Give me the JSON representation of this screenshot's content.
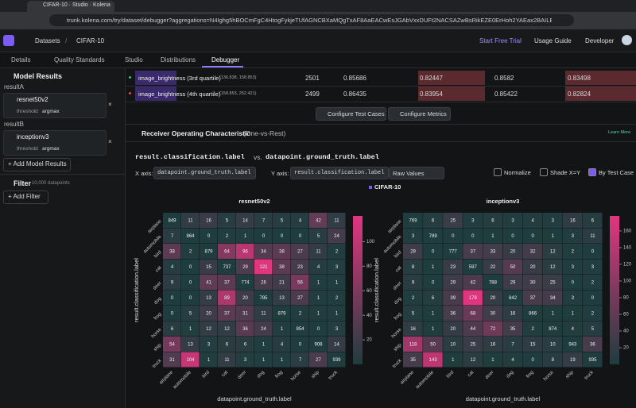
{
  "browser": {
    "tab_title": "CIFAR-10 · Studio · Kolena",
    "url": "trunk.kolena.com/try/dataset/debugger?aggregations=N4Ighg5hBOCmFgC4HtogFykjeTUfAGNCBXaMQgTxAF8AaEACwEsJGAbVxxDUFt2NACSAZwBsRikEZE0ErHoh2YAEax2BAILEyFagwAOYcgFsRvEDGQ"
  },
  "header": {
    "breadcrumb": [
      "Datasets",
      "CIFAR-10"
    ],
    "actions": [
      "Start Free Trial",
      "Usage Guide",
      "Developer"
    ]
  },
  "tabs": [
    "Details",
    "Quality Standards",
    "Studio",
    "Distributions",
    "Debugger"
  ],
  "sidebar": {
    "model_results_title": "Model Results",
    "models": [
      {
        "group": "resultA",
        "name": "resnet50v2",
        "param": "threshold",
        "param_value": "argmax"
      },
      {
        "group": "resultB",
        "name": "inceptionv3",
        "param": "threshold",
        "param_value": "argmax"
      }
    ],
    "add_model": "+ Add Model Results",
    "filter_title": "Filter",
    "filter_count": "10,000 datapoints",
    "add_filter": "+ Add Filter"
  },
  "table": {
    "rows": [
      [
        "image_brightness (3rd quartile)",
        "(136.838, 158.853)",
        "2501",
        "0.85686",
        "0.82447",
        "0.8582",
        "0.83498"
      ],
      [
        "image_brightness (4th quartile)",
        "(158.853, 252.421)",
        "2499",
        "0.86435",
        "0.83954",
        "0.85422",
        "0.82824"
      ]
    ]
  },
  "buttons": [
    "Configure Test Cases",
    "Configure Metrics"
  ],
  "section": {
    "title": "Receiver Operating Characteristic",
    "subtitle": "(One-vs-Rest)",
    "link": "Learn More"
  },
  "plot": {
    "title_parts": [
      "result.classification.label",
      "vs.",
      "datapoint.ground_truth.label"
    ],
    "x_axis_label": "X axis:",
    "x_axis_value": "datapoint.ground_truth.label",
    "y_axis_label": "Y axis:",
    "y_axis_value": "result.classification.label",
    "mode": "Raw Values",
    "options": [
      "Normalize",
      "Shade X=Y",
      "By Test Case"
    ],
    "legend": "CIFAR-10"
  },
  "heatmaps": {
    "categories": [
      "airplane",
      "automobile",
      "bird",
      "cat",
      "deer",
      "dog",
      "frog",
      "horse",
      "ship",
      "truck"
    ],
    "y_label": "result.classification.label",
    "x_label": "datapoint.ground_truth.label",
    "plots": [
      {
        "title": "resnet50v2",
        "colorbar_ticks": [
          100,
          80,
          60,
          40,
          20
        ],
        "matrix": [
          [
            849,
            11,
            16,
            5,
            14,
            7,
            5,
            4,
            42,
            11
          ],
          [
            7,
            864,
            0,
            2,
            1,
            0,
            0,
            0,
            5,
            24
          ],
          [
            38,
            2,
            879,
            64,
            96,
            34,
            38,
            27,
            11,
            2
          ],
          [
            4,
            0,
            15,
            737,
            29,
            121,
            38,
            23,
            4,
            3
          ],
          [
            9,
            0,
            41,
            37,
            774,
            26,
            21,
            56,
            1,
            1
          ],
          [
            0,
            0,
            13,
            89,
            20,
            785,
            13,
            27,
            1,
            2
          ],
          [
            0,
            5,
            20,
            37,
            31,
            11,
            879,
            2,
            1,
            1
          ],
          [
            6,
            1,
            12,
            12,
            36,
            24,
            1,
            854,
            0,
            3
          ],
          [
            54,
            13,
            3,
            6,
            6,
            1,
            4,
            0,
            908,
            14
          ],
          [
            31,
            104,
            1,
            11,
            3,
            1,
            1,
            7,
            27,
            939
          ]
        ]
      },
      {
        "title": "inceptionv3",
        "colorbar_ticks": [
          160,
          140,
          120,
          100,
          80,
          60,
          40,
          20
        ],
        "matrix": [
          [
            769,
            6,
            25,
            3,
            6,
            3,
            4,
            3,
            16,
            6
          ],
          [
            3,
            789,
            0,
            0,
            1,
            0,
            0,
            1,
            3,
            11
          ],
          [
            29,
            0,
            777,
            37,
            33,
            20,
            32,
            12,
            2,
            0
          ],
          [
            8,
            1,
            23,
            597,
            22,
            50,
            20,
            12,
            3,
            3
          ],
          [
            9,
            0,
            29,
            42,
            788,
            29,
            30,
            25,
            0,
            2
          ],
          [
            2,
            6,
            39,
            178,
            20,
            842,
            37,
            34,
            3,
            0
          ],
          [
            5,
            1,
            36,
            68,
            30,
            16,
            866,
            1,
            1,
            2
          ],
          [
            16,
            1,
            20,
            44,
            72,
            35,
            2,
            874,
            4,
            5
          ],
          [
            118,
            50,
            10,
            25,
            16,
            7,
            15,
            10,
            943,
            36
          ],
          [
            35,
            143,
            1,
            12,
            1,
            4,
            0,
            8,
            19,
            935
          ]
        ]
      }
    ]
  }
}
